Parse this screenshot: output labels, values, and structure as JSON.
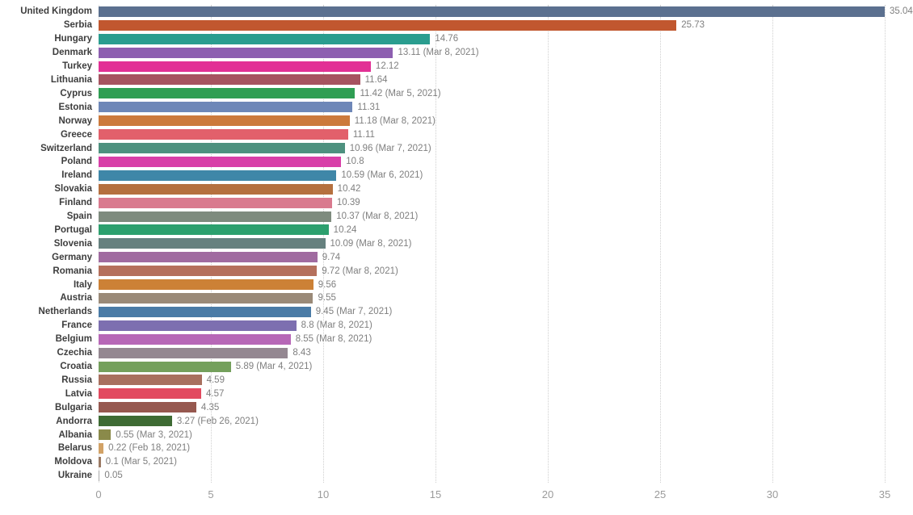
{
  "chart_data": {
    "type": "bar",
    "orientation": "horizontal",
    "title": "",
    "xlabel": "",
    "ylabel": "",
    "xlim": [
      0,
      35
    ],
    "x_ticks": [
      0,
      5,
      10,
      15,
      20,
      25,
      30,
      35
    ],
    "x_tick_labels": [
      "0",
      "5",
      "10",
      "15",
      "20",
      "25",
      "30",
      "35"
    ],
    "grid": "dotted-vertical",
    "legend": "none",
    "bars": [
      {
        "country": "United Kingdom",
        "value": 35.04,
        "label": "35.04",
        "color": "#5b708f"
      },
      {
        "country": "Serbia",
        "value": 25.73,
        "label": "25.73",
        "color": "#c1572f"
      },
      {
        "country": "Hungary",
        "value": 14.76,
        "label": "14.76",
        "color": "#2a9d8f"
      },
      {
        "country": "Denmark",
        "value": 13.11,
        "label": "13.11 (Mar 8, 2021)",
        "color": "#8d5fb0"
      },
      {
        "country": "Turkey",
        "value": 12.12,
        "label": "12.12",
        "color": "#e23095"
      },
      {
        "country": "Lithuania",
        "value": 11.64,
        "label": "11.64",
        "color": "#a65360"
      },
      {
        "country": "Cyprus",
        "value": 11.42,
        "label": "11.42 (Mar 5, 2021)",
        "color": "#2f9e53"
      },
      {
        "country": "Estonia",
        "value": 11.31,
        "label": "11.31",
        "color": "#6e87b8"
      },
      {
        "country": "Norway",
        "value": 11.18,
        "label": "11.18 (Mar 8, 2021)",
        "color": "#cc7a3c"
      },
      {
        "country": "Greece",
        "value": 11.11,
        "label": "11.11",
        "color": "#e2606b"
      },
      {
        "country": "Switzerland",
        "value": 10.96,
        "label": "10.96 (Mar 7, 2021)",
        "color": "#4e917f"
      },
      {
        "country": "Poland",
        "value": 10.8,
        "label": "10.8",
        "color": "#d83fa8"
      },
      {
        "country": "Ireland",
        "value": 10.59,
        "label": "10.59 (Mar 6, 2021)",
        "color": "#3f87a8"
      },
      {
        "country": "Slovakia",
        "value": 10.42,
        "label": "10.42",
        "color": "#b5703f"
      },
      {
        "country": "Finland",
        "value": 10.39,
        "label": "10.39",
        "color": "#d97a8e"
      },
      {
        "country": "Spain",
        "value": 10.37,
        "label": "10.37 (Mar 8, 2021)",
        "color": "#7e8b7e"
      },
      {
        "country": "Portugal",
        "value": 10.24,
        "label": "10.24",
        "color": "#2da06e"
      },
      {
        "country": "Slovenia",
        "value": 10.09,
        "label": "10.09 (Mar 8, 2021)",
        "color": "#66817f"
      },
      {
        "country": "Germany",
        "value": 9.74,
        "label": "9.74",
        "color": "#a06ba0"
      },
      {
        "country": "Romania",
        "value": 9.72,
        "label": "9.72 (Mar 8, 2021)",
        "color": "#b5705c"
      },
      {
        "country": "Italy",
        "value": 9.56,
        "label": "9.56",
        "color": "#cc8136"
      },
      {
        "country": "Austria",
        "value": 9.55,
        "label": "9.55",
        "color": "#9a8a78"
      },
      {
        "country": "Netherlands",
        "value": 9.45,
        "label": "9.45 (Mar 7, 2021)",
        "color": "#4a7ba6"
      },
      {
        "country": "France",
        "value": 8.8,
        "label": "8.8 (Mar 8, 2021)",
        "color": "#7d6fb0"
      },
      {
        "country": "Belgium",
        "value": 8.55,
        "label": "8.55 (Mar 8, 2021)",
        "color": "#b767b7"
      },
      {
        "country": "Czechia",
        "value": 8.43,
        "label": "8.43",
        "color": "#948791"
      },
      {
        "country": "Croatia",
        "value": 5.89,
        "label": "5.89 (Mar 4, 2021)",
        "color": "#74a05c"
      },
      {
        "country": "Russia",
        "value": 4.59,
        "label": "4.59",
        "color": "#a8705f"
      },
      {
        "country": "Latvia",
        "value": 4.57,
        "label": "4.57",
        "color": "#e24a5f"
      },
      {
        "country": "Bulgaria",
        "value": 4.35,
        "label": "4.35",
        "color": "#96584f"
      },
      {
        "country": "Andorra",
        "value": 3.27,
        "label": "3.27 (Feb 26, 2021)",
        "color": "#3e6b34"
      },
      {
        "country": "Albania",
        "value": 0.55,
        "label": "0.55 (Mar 3, 2021)",
        "color": "#8a8a4a"
      },
      {
        "country": "Belarus",
        "value": 0.22,
        "label": "0.22 (Feb 18, 2021)",
        "color": "#d2a266"
      },
      {
        "country": "Moldova",
        "value": 0.1,
        "label": "0.1 (Mar 5, 2021)",
        "color": "#9b7a64"
      },
      {
        "country": "Ukraine",
        "value": 0.05,
        "label": "0.05",
        "color": "#a9a9a9"
      }
    ]
  },
  "layout_colors": {
    "background": "#ffffff",
    "gridline": "#cfcfcf",
    "country_label": "#3d3d3d",
    "value_label": "#7f7f7f",
    "axis_tick": "#9b9b9b"
  }
}
